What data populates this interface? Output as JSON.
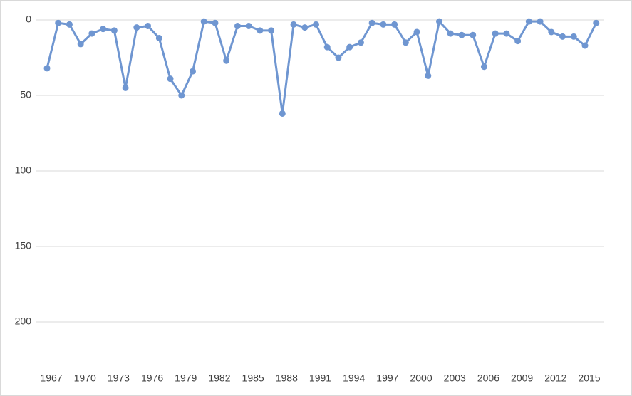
{
  "chart_data": {
    "type": "line",
    "categories": [
      "1967",
      null,
      null,
      "1970",
      null,
      null,
      "1973",
      null,
      null,
      "1976",
      null,
      null,
      "1979",
      null,
      null,
      "1982",
      null,
      null,
      "1985",
      null,
      null,
      "1988",
      null,
      null,
      "1991",
      null,
      null,
      "1994",
      null,
      null,
      "1997",
      null,
      null,
      "2000",
      null,
      null,
      "2003",
      null,
      null,
      "2006",
      null,
      null,
      "2009",
      null,
      null,
      "2012",
      null,
      null,
      "2015",
      null
    ],
    "series": [
      {
        "color": "#6f96d1",
        "values": [
          32,
          2,
          3,
          16,
          9,
          6,
          7,
          45,
          5,
          4,
          12,
          39,
          50,
          34,
          1,
          2,
          27,
          4,
          4,
          7,
          7,
          62,
          3,
          5,
          3,
          18,
          25,
          18,
          15,
          2,
          3,
          3,
          15,
          8,
          37,
          1,
          9,
          10,
          10,
          31,
          9,
          9,
          14,
          1,
          1,
          8,
          11,
          11,
          17,
          2
        ]
      }
    ],
    "ylim": [
      0,
      225
    ],
    "yticks": [
      0,
      50,
      100,
      150,
      200
    ],
    "y_inverted": true,
    "grid": true
  }
}
